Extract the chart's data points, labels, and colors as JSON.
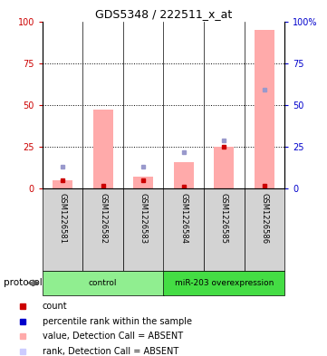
{
  "title": "GDS5348 / 222511_x_at",
  "samples": [
    "GSM1226581",
    "GSM1226582",
    "GSM1226583",
    "GSM1226584",
    "GSM1226585",
    "GSM1226586"
  ],
  "pink_bar_values": [
    5,
    47,
    7,
    16,
    25,
    95
  ],
  "red_dot_values": [
    5,
    2,
    5,
    1,
    25,
    2
  ],
  "blue_dot_values": [
    13,
    null,
    13,
    22,
    29,
    59
  ],
  "groups": [
    {
      "label": "control",
      "span": [
        0,
        3
      ],
      "color": "#90ee90"
    },
    {
      "label": "miR-203 overexpression",
      "span": [
        3,
        6
      ],
      "color": "#44dd44"
    }
  ],
  "ylim": [
    0,
    100
  ],
  "yticks": [
    0,
    25,
    50,
    75,
    100
  ],
  "left_axis_color": "#cc0000",
  "right_axis_color": "#0000cc",
  "pink_bar_color": "#ffaaaa",
  "red_dot_color": "#cc0000",
  "blue_dot_color": "#9999cc",
  "sample_box_color": "#d3d3d3",
  "legend_items": [
    {
      "color": "#cc0000",
      "label": "count"
    },
    {
      "color": "#0000cc",
      "label": "percentile rank within the sample"
    },
    {
      "color": "#ffaaaa",
      "label": "value, Detection Call = ABSENT"
    },
    {
      "color": "#ccccff",
      "label": "rank, Detection Call = ABSENT"
    }
  ],
  "protocol_label": "protocol"
}
